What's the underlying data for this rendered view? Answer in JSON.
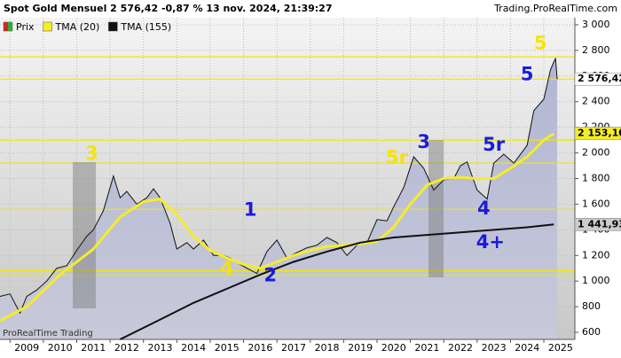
{
  "chart_data": {
    "type": "line",
    "title": "Spot  Gold Mensuel 2 576,42 -0,87 % 13 nov. 2024, 21:39:27",
    "source": "Trading.ProRealTime.com",
    "watermark": "ProRealTime Trading",
    "xlim": [
      2008.2,
      2025.43
    ],
    "ylim": [
      545,
      3055
    ],
    "xticks": [
      2009,
      2010,
      2011,
      2012,
      2013,
      2014,
      2015,
      2016,
      2017,
      2018,
      2019,
      2020,
      2021,
      2022,
      2023,
      2024,
      2025
    ],
    "yticks": [
      {
        "value": 600,
        "label": "600"
      },
      {
        "value": 800,
        "label": "800"
      },
      {
        "value": 1000,
        "label": "1 000"
      },
      {
        "value": 1200,
        "label": "1 200"
      },
      {
        "value": 1400,
        "label": "1 400"
      },
      {
        "value": 1600,
        "label": "1 600"
      },
      {
        "value": 1800,
        "label": "1 800"
      },
      {
        "value": 2000,
        "label": "2 000"
      },
      {
        "value": 2200,
        "label": "2 200"
      },
      {
        "value": 2400,
        "label": "2 400"
      },
      {
        "value": 2600,
        "label": "2 600"
      },
      {
        "value": 2800,
        "label": "2 800"
      },
      {
        "value": 3000,
        "label": "3 000"
      }
    ],
    "series": [
      {
        "name": "Prix",
        "color": "#111111",
        "x": [
          2008.2,
          2008.5,
          2008.8,
          2009.0,
          2009.3,
          2009.6,
          2009.9,
          2010.2,
          2010.5,
          2010.8,
          2011.0,
          2011.3,
          2011.6,
          2011.8,
          2012.0,
          2012.3,
          2012.6,
          2012.8,
          2013.0,
          2013.3,
          2013.5,
          2013.8,
          2014.0,
          2014.3,
          2014.6,
          2014.9,
          2015.1,
          2015.4,
          2015.6,
          2015.9,
          2016.2,
          2016.5,
          2016.8,
          2017.0,
          2017.4,
          2017.7,
          2018.0,
          2018.3,
          2018.6,
          2018.9,
          2019.2,
          2019.5,
          2019.8,
          2020.0,
          2020.3,
          2020.6,
          2020.9,
          2021.2,
          2021.5,
          2021.8,
          2022.0,
          2022.2,
          2022.5,
          2022.8,
          2023.0,
          2023.3,
          2023.6,
          2023.8,
          2024.0,
          2024.2,
          2024.5,
          2024.7,
          2024.85,
          2024.9
        ],
        "values": [
          880,
          900,
          750,
          880,
          930,
          1000,
          1100,
          1120,
          1240,
          1350,
          1400,
          1550,
          1820,
          1650,
          1700,
          1600,
          1650,
          1720,
          1650,
          1450,
          1250,
          1300,
          1250,
          1320,
          1200,
          1200,
          1180,
          1130,
          1100,
          1060,
          1230,
          1320,
          1180,
          1210,
          1260,
          1280,
          1340,
          1300,
          1200,
          1280,
          1300,
          1480,
          1470,
          1580,
          1730,
          1970,
          1880,
          1710,
          1790,
          1800,
          1900,
          1930,
          1710,
          1640,
          1920,
          1990,
          1920,
          1990,
          2060,
          2330,
          2420,
          2650,
          2740,
          2576
        ]
      },
      {
        "name": "TMA (20)",
        "color": "#f5ec2a",
        "x": [
          2008.2,
          2009,
          2010,
          2011,
          2011.8,
          2012.5,
          2013,
          2013.5,
          2014,
          2014.5,
          2015,
          2015.5,
          2016,
          2016.5,
          2017,
          2017.5,
          2018,
          2018.5,
          2019,
          2019.5,
          2020,
          2020.5,
          2021,
          2021.5,
          2022,
          2022.5,
          2023,
          2023.5,
          2024,
          2024.5,
          2024.8
        ],
        "values": [
          690,
          800,
          1050,
          1250,
          1500,
          1620,
          1640,
          1520,
          1350,
          1240,
          1180,
          1130,
          1100,
          1150,
          1200,
          1240,
          1270,
          1280,
          1290,
          1310,
          1420,
          1600,
          1750,
          1800,
          1810,
          1800,
          1800,
          1880,
          1970,
          2100,
          2150
        ]
      },
      {
        "name": "TMA (155)",
        "color": "#111111",
        "x": [
          2011.8,
          2013,
          2014,
          2015,
          2016,
          2017,
          2018,
          2019,
          2020,
          2021,
          2022,
          2023,
          2024,
          2024.8
        ],
        "values": [
          545,
          700,
          830,
          940,
          1050,
          1150,
          1230,
          1300,
          1340,
          1360,
          1380,
          1400,
          1420,
          1442
        ]
      }
    ],
    "levels": [
      2750,
      2576,
      2100,
      1920,
      1560,
      1080,
      1045
    ],
    "price_labels": [
      {
        "value": 2576.42,
        "label": "2 576,42",
        "color": "#ffffff"
      },
      {
        "value": 2153.1,
        "label": "2 153,10",
        "color": "#f5ec2a"
      },
      {
        "value": 1441.93,
        "label": "1 441,93",
        "color": "#cccccc"
      }
    ],
    "annotations": [
      {
        "text": "3",
        "x": 2010.95,
        "y": 1990,
        "color": "#f5e400"
      },
      {
        "text": "5r",
        "x": 2020.1,
        "y": 1960,
        "color": "#f5e400"
      },
      {
        "text": "1",
        "x": 2015.7,
        "y": 1550,
        "color": "#1a1adf"
      },
      {
        "text": "4",
        "x": 2015.0,
        "y": 1090,
        "color": "#f5e400"
      },
      {
        "text": "2",
        "x": 2016.3,
        "y": 1040,
        "color": "#1a1adf"
      },
      {
        "text": "3",
        "x": 2020.9,
        "y": 2080,
        "color": "#1a1adf"
      },
      {
        "text": "5r",
        "x": 2023.0,
        "y": 2060,
        "color": "#1a1adf"
      },
      {
        "text": "4",
        "x": 2022.7,
        "y": 1560,
        "color": "#1a1adf"
      },
      {
        "text": "4+",
        "x": 2022.9,
        "y": 1300,
        "color": "#1a1adf"
      },
      {
        "text": "5",
        "x": 2024.0,
        "y": 2610,
        "color": "#1a1adf"
      },
      {
        "text": "5",
        "x": 2024.4,
        "y": 2850,
        "color": "#f5e400"
      }
    ]
  }
}
